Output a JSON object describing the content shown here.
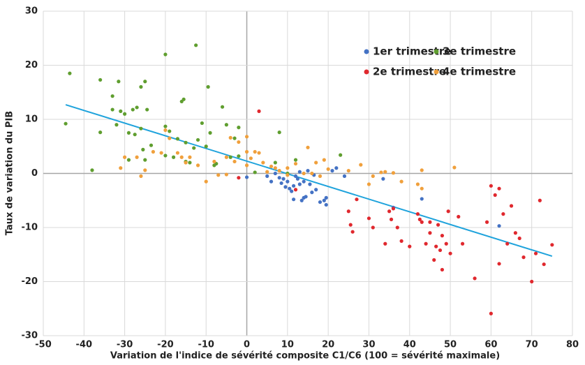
{
  "chart_data": {
    "type": "scatter",
    "x_label": "Variation de l'indice de sévérité composite C1/C6 (100 = sévérité maximale)",
    "y_label": "Taux de variation du PIB",
    "xlim": [
      -50,
      80
    ],
    "ylim": [
      -30,
      30
    ],
    "xticks": [
      -50,
      -40,
      -30,
      -20,
      -10,
      0,
      10,
      20,
      30,
      40,
      50,
      60,
      70,
      80
    ],
    "yticks": [
      -30,
      -20,
      -10,
      0,
      10,
      20,
      30
    ],
    "grid": true,
    "legend": "upper right",
    "trendline": {
      "color": "#1fa3dc",
      "x": [
        -44.5,
        75
      ],
      "y": [
        12.7,
        -15.3
      ]
    },
    "series": [
      {
        "name": "1er trimestre",
        "color": "#4472c4",
        "x": [
          0,
          5,
          6,
          7,
          8,
          8.5,
          9,
          9.5,
          10,
          10.5,
          11,
          11.5,
          12,
          12.5,
          13,
          13.5,
          14,
          14.5,
          15,
          15.5,
          16,
          16.5,
          17,
          18,
          19,
          19.5,
          19.5,
          21,
          22,
          24,
          33.5,
          43,
          62,
          36,
          11.5,
          13,
          14
        ],
        "y": [
          -0.7,
          -0.5,
          -1.5,
          0,
          -0.8,
          -1.8,
          -1,
          -2.5,
          -1.5,
          -2.8,
          -3.3,
          -4.8,
          -0.5,
          -1,
          -2,
          -5,
          -1.5,
          -4.3,
          0.5,
          -2,
          -3.5,
          -0.3,
          -3,
          -5.3,
          -5,
          -5.8,
          -4.5,
          0.5,
          1,
          -0.5,
          -1,
          -4.7,
          -9.7,
          -6.3,
          -2.3,
          0.3,
          -4.5
        ]
      },
      {
        "name": "2e trimestre",
        "color": "#e0282e",
        "x": [
          3,
          -2,
          12,
          25,
          25.5,
          26,
          27,
          30,
          31,
          34,
          35,
          35.5,
          36,
          37,
          38,
          42,
          42.5,
          43,
          44,
          45,
          46,
          46.5,
          47,
          47.5,
          48,
          49,
          49.5,
          50,
          52,
          53,
          56,
          59,
          60,
          60,
          61,
          62,
          62,
          63,
          64,
          65,
          66,
          67,
          68,
          70,
          71,
          72,
          73,
          75,
          45,
          40,
          48
        ],
        "y": [
          11.5,
          -0.8,
          -3,
          -7,
          -9.5,
          -10.8,
          -4.8,
          -8.3,
          -10,
          -13,
          -7,
          -8.5,
          -6.5,
          -10,
          -12.5,
          -7.5,
          -8.5,
          -9,
          -13,
          -11,
          -16,
          -13.5,
          -9.5,
          -14.2,
          -17.8,
          -13,
          -7,
          -14.8,
          -8,
          -13,
          -19.4,
          -9,
          -25.9,
          -2.3,
          -4,
          -2.8,
          -16.7,
          -7.5,
          -13,
          -6,
          -11,
          -12,
          -15.5,
          -20,
          -14.8,
          -5,
          -16.8,
          -13.2,
          -9,
          -13.5,
          -11.5
        ]
      },
      {
        "name": "3e trimestre",
        "color": "#5f9e2f",
        "x": [
          -44.5,
          -43.5,
          -38,
          -36,
          -36,
          -33,
          -33,
          -32,
          -31.5,
          -31,
          -30,
          -29,
          -29,
          -28,
          -27.5,
          -27,
          -26,
          -26,
          -25.5,
          -25,
          -25,
          -24.5,
          -23.5,
          -20,
          -20,
          -20,
          -19,
          -18,
          -17,
          -16,
          -15.5,
          -15,
          -14,
          -13,
          -12.5,
          -12,
          -11,
          -10,
          -9.5,
          -9,
          -8,
          -6,
          -5,
          -4,
          -3,
          -2,
          -2,
          2,
          7,
          8,
          10,
          12,
          23,
          -15,
          -7.5
        ],
        "y": [
          9.2,
          18.5,
          0.6,
          17.3,
          7.6,
          14.3,
          11.8,
          9,
          17,
          11.5,
          11,
          2.5,
          7.5,
          11.8,
          7.2,
          12.2,
          16,
          8.3,
          4.4,
          17,
          2.5,
          11.8,
          5.2,
          22,
          8.7,
          3.3,
          7.8,
          3,
          6.4,
          13.3,
          13.7,
          5.7,
          2,
          4.7,
          23.7,
          6.2,
          9.3,
          5,
          16,
          7.5,
          1.5,
          12.3,
          9,
          3,
          6.5,
          8.5,
          3.2,
          0.2,
          2,
          7.6,
          0,
          2.5,
          3.4,
          2.2,
          1.8
        ]
      },
      {
        "name": "4e trimestre",
        "color": "#f0a03c",
        "x": [
          -31,
          -30,
          -27,
          -26,
          -25,
          -23,
          -21,
          -20,
          -19,
          -17,
          -16,
          -15,
          -14,
          -12,
          -10,
          -8,
          -7,
          -5,
          -5,
          -4,
          -3,
          -2,
          0,
          0,
          0,
          1,
          2,
          3,
          4,
          5,
          6,
          7,
          8,
          10,
          12,
          14,
          15,
          16,
          17,
          18,
          19,
          20,
          25,
          28,
          31,
          33,
          34,
          36,
          38,
          42,
          43,
          43,
          51,
          30,
          10
        ],
        "y": [
          1,
          3,
          3,
          -0.5,
          0.6,
          4,
          3.8,
          8,
          6.5,
          3.8,
          3,
          2,
          3,
          1.5,
          -1.5,
          2.2,
          -0.3,
          3,
          -0.2,
          6.6,
          2.2,
          5.8,
          6.8,
          4,
          1.5,
          2.8,
          4,
          3.8,
          2,
          0.3,
          1.3,
          1,
          0.5,
          1,
          1.8,
          0,
          4.8,
          0,
          2,
          -0.5,
          2.5,
          0.8,
          0.5,
          1.6,
          -0.5,
          0.2,
          0.3,
          0.1,
          -1.5,
          -2,
          0.6,
          -2.8,
          1.1,
          -2,
          -0.3
        ]
      }
    ]
  }
}
